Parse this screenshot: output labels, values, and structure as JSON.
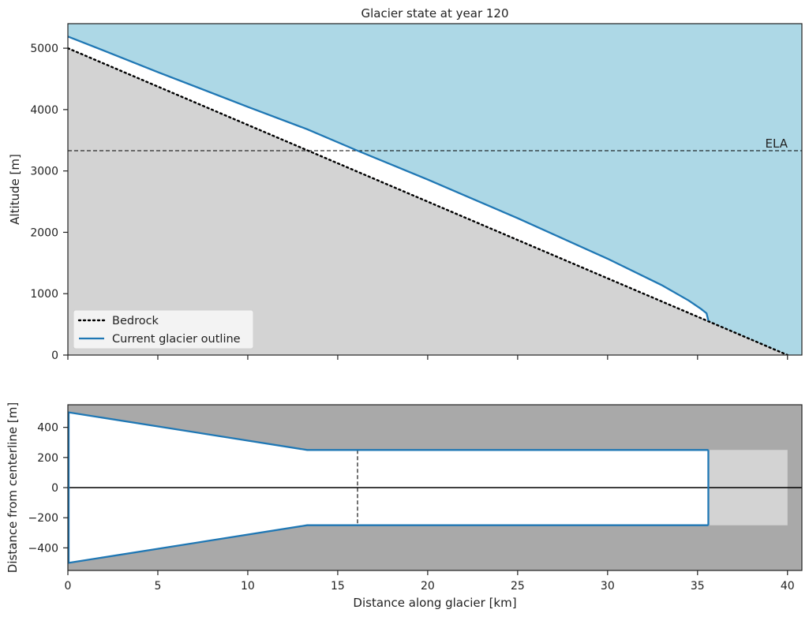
{
  "chart_data": [
    {
      "type": "area",
      "title": "Glacier state at year 120",
      "xlabel": "",
      "ylabel": "Altitude [m]",
      "xlim": [
        0,
        40.8
      ],
      "ylim": [
        0,
        5400
      ],
      "xticks": [
        0,
        5,
        10,
        15,
        20,
        25,
        30,
        35,
        40
      ],
      "yticks": [
        0,
        1000,
        2000,
        3000,
        4000,
        5000
      ],
      "ytick_labels": [
        "0",
        "1000",
        "2000",
        "3000",
        "4000",
        "5000"
      ],
      "sky_color": "#add8e6",
      "ground_color": "#d3d3d3",
      "ela": {
        "label": "ELA",
        "altitude": 3330
      },
      "legend": {
        "position": "lower-left",
        "entries": [
          "Bedrock",
          "Current glacier outline"
        ]
      },
      "series": [
        {
          "name": "Bedrock",
          "style": "dotted",
          "color": "#000000",
          "x": [
            0,
            40
          ],
          "y": [
            5000,
            0
          ]
        },
        {
          "name": "Current glacier outline",
          "style": "solid",
          "color": "#1f77b4",
          "x": [
            0,
            2,
            5,
            10,
            13.3,
            16.1,
            20,
            25,
            30,
            33,
            34.5,
            35.2,
            35.5,
            35.6
          ],
          "y": [
            5190,
            4960,
            4610,
            4045,
            3680,
            3330,
            2860,
            2230,
            1570,
            1140,
            890,
            750,
            680,
            560
          ]
        }
      ]
    },
    {
      "type": "line",
      "xlabel": "Distance along glacier [km]",
      "ylabel": "Distance from centerline [m]",
      "xlim": [
        0,
        40.8
      ],
      "ylim": [
        -550,
        550
      ],
      "xticks": [
        0,
        5,
        10,
        15,
        20,
        25,
        30,
        35,
        40
      ],
      "xtick_labels": [
        "0",
        "5",
        "10",
        "15",
        "20",
        "25",
        "30",
        "35",
        "40"
      ],
      "yticks": [
        -400,
        -200,
        0,
        200,
        400
      ],
      "ytick_labels": [
        "−400",
        "−200",
        "0",
        "200",
        "400"
      ],
      "background_color": "#a9a9a9",
      "valley_color": "#d3d3d3",
      "valley_outline": {
        "x": [
          0,
          13.3,
          40
        ],
        "half_width": [
          500,
          250,
          250
        ]
      },
      "glacier_outline": {
        "color": "#1f77b4",
        "x": [
          0,
          13.3,
          35.6
        ],
        "half_width": [
          500,
          250,
          250
        ]
      },
      "ela_x": 16.1,
      "ela_half_width": 250
    }
  ]
}
